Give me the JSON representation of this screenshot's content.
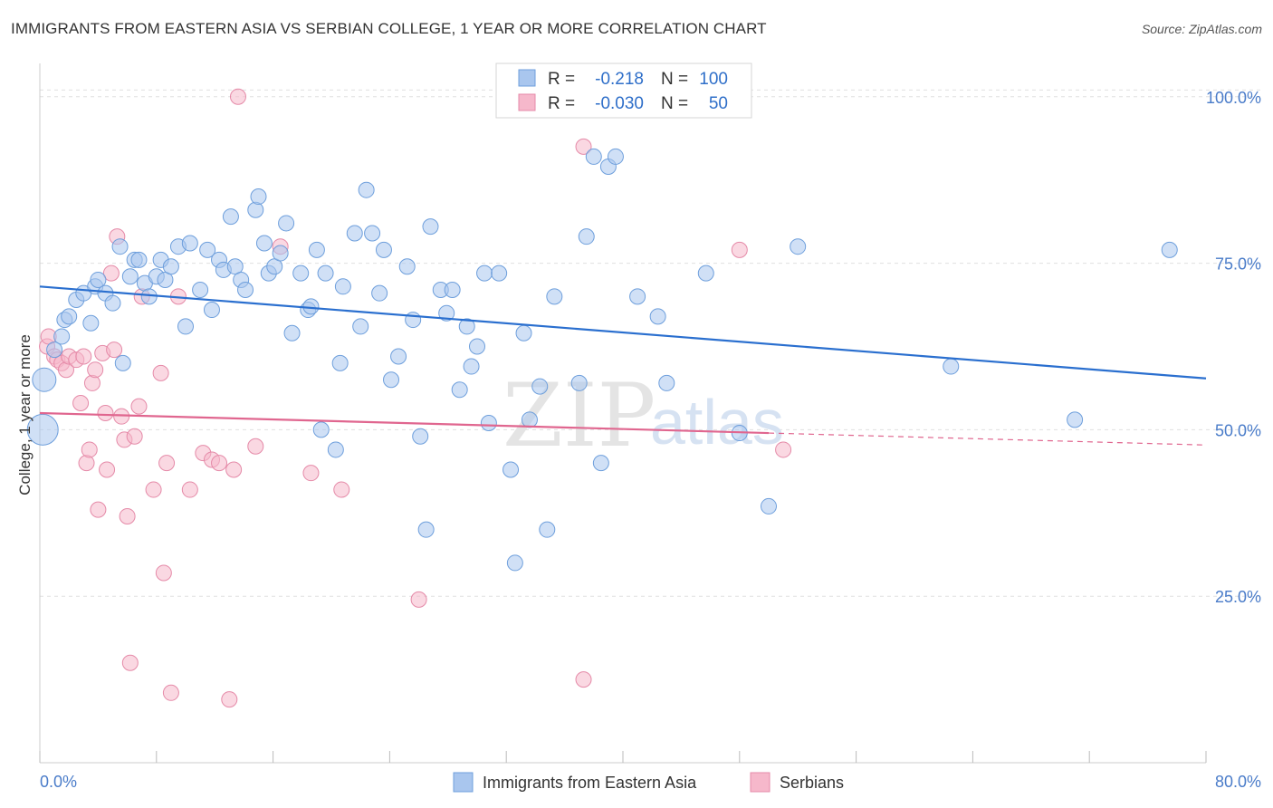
{
  "title": "IMMIGRANTS FROM EASTERN ASIA VS SERBIAN COLLEGE, 1 YEAR OR MORE CORRELATION CHART",
  "source": "Source: ZipAtlas.com",
  "watermark": {
    "zip": "ZIP",
    "atlas": "atlas"
  },
  "colors": {
    "blue_fill": "#a9c6ee",
    "blue_stroke": "#6e9fdc",
    "blue_line": "#2a6fcf",
    "pink_fill": "#f6b8cb",
    "pink_stroke": "#e58aa8",
    "pink_line": "#e0668f",
    "grid": "#e0e0e0",
    "tick_text": "#4a7cc9"
  },
  "legend": {
    "rows": [
      {
        "r_label": "R =",
        "r_value": "-0.218",
        "n_label": "N =",
        "n_value": "100",
        "color": "#a9c6ee"
      },
      {
        "r_label": "R =",
        "r_value": "-0.030",
        "n_label": "N =",
        "n_value": "50",
        "color": "#f6b8cb"
      }
    ]
  },
  "bottom_legend": [
    "Immigrants from Eastern Asia",
    "Serbians"
  ],
  "chart_data": {
    "type": "scatter",
    "title": "IMMIGRANTS FROM EASTERN ASIA VS SERBIAN COLLEGE, 1 YEAR OR MORE CORRELATION CHART",
    "xlabel": "",
    "ylabel": "College, 1 year or more",
    "xlim": [
      0,
      80
    ],
    "ylim": [
      0,
      105
    ],
    "x_tick_labels": [
      "0.0%",
      "80.0%"
    ],
    "y_ticks": [
      25,
      50,
      75,
      100
    ],
    "y_tick_labels": [
      "25.0%",
      "50.0%",
      "75.0%",
      "100.0%"
    ],
    "grid": true,
    "legend_position": "top-center",
    "series": [
      {
        "name": "Immigrants from Eastern Asia",
        "trend": {
          "x": [
            0,
            80
          ],
          "y": [
            71.5,
            57.7
          ]
        },
        "points": [
          [
            0.3,
            57.5
          ],
          [
            0.2,
            50.0
          ],
          [
            1.0,
            62.0
          ],
          [
            1.5,
            64.0
          ],
          [
            1.7,
            66.5
          ],
          [
            2.0,
            67.0
          ],
          [
            2.5,
            69.5
          ],
          [
            3.0,
            70.5
          ],
          [
            3.5,
            66.0
          ],
          [
            3.8,
            71.5
          ],
          [
            4.0,
            72.5
          ],
          [
            4.5,
            70.5
          ],
          [
            5.0,
            69.0
          ],
          [
            5.5,
            77.5
          ],
          [
            5.7,
            60.0
          ],
          [
            6.2,
            73.0
          ],
          [
            6.5,
            75.5
          ],
          [
            6.8,
            75.5
          ],
          [
            7.2,
            72.0
          ],
          [
            7.5,
            70.0
          ],
          [
            8.0,
            73.0
          ],
          [
            8.3,
            75.5
          ],
          [
            8.6,
            72.5
          ],
          [
            9.0,
            74.5
          ],
          [
            9.5,
            77.5
          ],
          [
            10.0,
            65.5
          ],
          [
            10.3,
            78.0
          ],
          [
            11.0,
            71.0
          ],
          [
            11.5,
            77.0
          ],
          [
            11.8,
            68.0
          ],
          [
            12.3,
            75.5
          ],
          [
            12.6,
            74.0
          ],
          [
            13.1,
            82.0
          ],
          [
            13.4,
            74.5
          ],
          [
            13.8,
            72.5
          ],
          [
            14.1,
            71.0
          ],
          [
            14.8,
            83.0
          ],
          [
            15.0,
            85.0
          ],
          [
            15.4,
            78.0
          ],
          [
            15.7,
            73.5
          ],
          [
            16.1,
            74.5
          ],
          [
            16.5,
            76.5
          ],
          [
            16.9,
            81.0
          ],
          [
            17.3,
            64.5
          ],
          [
            17.9,
            73.5
          ],
          [
            18.4,
            68.0
          ],
          [
            18.6,
            68.5
          ],
          [
            19.0,
            77.0
          ],
          [
            19.3,
            50.0
          ],
          [
            19.6,
            73.5
          ],
          [
            20.3,
            47.0
          ],
          [
            20.6,
            60.0
          ],
          [
            20.8,
            71.5
          ],
          [
            21.6,
            79.5
          ],
          [
            22.0,
            65.5
          ],
          [
            22.4,
            86.0
          ],
          [
            22.8,
            79.5
          ],
          [
            23.3,
            70.5
          ],
          [
            23.6,
            77.0
          ],
          [
            24.1,
            57.5
          ],
          [
            24.6,
            61.0
          ],
          [
            25.2,
            74.5
          ],
          [
            25.6,
            66.5
          ],
          [
            26.1,
            49.0
          ],
          [
            26.5,
            35.0
          ],
          [
            26.8,
            80.5
          ],
          [
            27.5,
            71.0
          ],
          [
            27.9,
            67.5
          ],
          [
            28.3,
            71.0
          ],
          [
            28.8,
            56.0
          ],
          [
            29.3,
            65.5
          ],
          [
            29.6,
            59.5
          ],
          [
            30.0,
            62.5
          ],
          [
            30.5,
            73.5
          ],
          [
            30.8,
            51.0
          ],
          [
            31.5,
            73.5
          ],
          [
            32.3,
            44.0
          ],
          [
            32.6,
            30.0
          ],
          [
            33.2,
            64.5
          ],
          [
            33.6,
            51.5
          ],
          [
            34.3,
            56.5
          ],
          [
            34.8,
            35.0
          ],
          [
            35.3,
            70.0
          ],
          [
            36.0,
            100.0
          ],
          [
            37.0,
            57.0
          ],
          [
            37.5,
            79.0
          ],
          [
            38.0,
            91.0
          ],
          [
            38.5,
            45.0
          ],
          [
            39.0,
            89.5
          ],
          [
            39.5,
            91.0
          ],
          [
            41.0,
            70.0
          ],
          [
            42.4,
            67.0
          ],
          [
            43.0,
            57.0
          ],
          [
            45.7,
            73.5
          ],
          [
            48.0,
            49.5
          ],
          [
            50.0,
            38.5
          ],
          [
            52.0,
            77.5
          ],
          [
            62.5,
            59.5
          ],
          [
            71.0,
            51.5
          ],
          [
            77.5,
            77.0
          ]
        ]
      },
      {
        "name": "Serbians",
        "trend": {
          "x": [
            0,
            50
          ],
          "y": [
            52.5,
            49.5
          ],
          "dashed_to": [
            80,
            47.7
          ]
        },
        "points": [
          [
            0.5,
            62.5
          ],
          [
            0.6,
            64.0
          ],
          [
            1.0,
            61.0
          ],
          [
            1.2,
            60.5
          ],
          [
            1.5,
            60.0
          ],
          [
            1.8,
            59.0
          ],
          [
            2.0,
            61.0
          ],
          [
            2.5,
            60.5
          ],
          [
            2.8,
            54.0
          ],
          [
            3.0,
            61.0
          ],
          [
            3.2,
            45.0
          ],
          [
            3.4,
            47.0
          ],
          [
            3.6,
            57.0
          ],
          [
            3.8,
            59.0
          ],
          [
            4.0,
            38.0
          ],
          [
            4.3,
            61.5
          ],
          [
            4.5,
            52.5
          ],
          [
            4.6,
            44.0
          ],
          [
            4.9,
            73.5
          ],
          [
            5.1,
            62.0
          ],
          [
            5.3,
            79.0
          ],
          [
            5.6,
            52.0
          ],
          [
            5.8,
            48.5
          ],
          [
            6.0,
            37.0
          ],
          [
            6.2,
            15.0
          ],
          [
            6.5,
            49.0
          ],
          [
            6.8,
            53.5
          ],
          [
            7.0,
            70.0
          ],
          [
            7.8,
            41.0
          ],
          [
            8.3,
            58.5
          ],
          [
            8.5,
            28.5
          ],
          [
            8.7,
            45.0
          ],
          [
            9.0,
            10.5
          ],
          [
            9.5,
            70.0
          ],
          [
            10.3,
            41.0
          ],
          [
            11.2,
            46.5
          ],
          [
            11.8,
            45.5
          ],
          [
            12.3,
            45.0
          ],
          [
            13.0,
            9.5
          ],
          [
            13.3,
            44.0
          ],
          [
            13.6,
            100.0
          ],
          [
            14.8,
            47.5
          ],
          [
            16.5,
            77.5
          ],
          [
            18.6,
            43.5
          ],
          [
            20.7,
            41.0
          ],
          [
            26.0,
            24.5
          ],
          [
            37.3,
            92.5
          ],
          [
            37.3,
            12.5
          ],
          [
            48.0,
            77.0
          ],
          [
            51.0,
            47.0
          ]
        ]
      }
    ]
  },
  "axis": {
    "ylabel": "College, 1 year or more",
    "x_min_label": "0.0%",
    "x_max_label": "80.0%"
  }
}
